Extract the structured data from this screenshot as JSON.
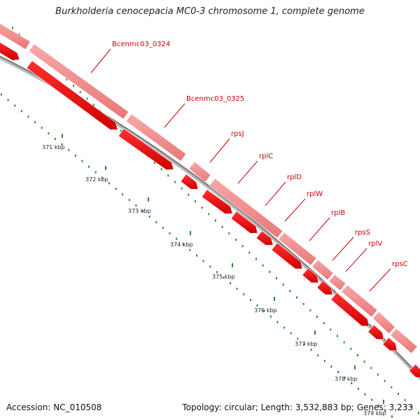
{
  "title": "Burkholderia cenocepacia MC0-3 chromosome 1, complete genome",
  "footer": {
    "accession": "Accession: NC_010508",
    "summary": "Topology: circular; Length: 3,532,883 bp; Genes: 3,233"
  },
  "ruler": {
    "unit": "kbp",
    "ticks": [
      "371 kbp",
      "372 kbp",
      "373 kbp",
      "374 kbp",
      "375 kbp",
      "376 kbp",
      "377 kbp",
      "378 kbp",
      "379 kbp"
    ]
  },
  "genes": [
    {
      "label": "Bcenmc03_0324"
    },
    {
      "label": "Bcenmc03_0325"
    },
    {
      "label": "rpsJ"
    },
    {
      "label": "rplC"
    },
    {
      "label": "rplD"
    },
    {
      "label": "rplW"
    },
    {
      "label": "rplB"
    },
    {
      "label": "rpsS"
    },
    {
      "label": "rplV"
    },
    {
      "label": "rpsC"
    }
  ],
  "colors": {
    "cds_feature": "#ee0000",
    "gene_feature": "#f08a8a",
    "backbone": "#888888",
    "ticks": "#2e8b2e",
    "gene_labels": "#cc0000"
  }
}
